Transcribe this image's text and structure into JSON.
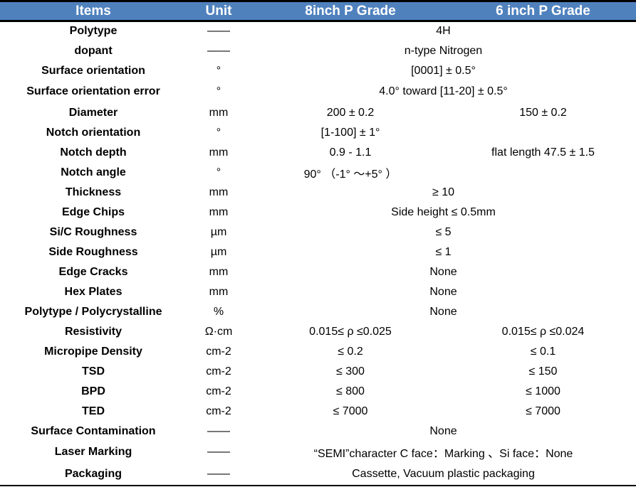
{
  "header": {
    "items": "Items",
    "unit": "Unit",
    "grade8": "8inch P Grade",
    "grade6": "6 inch P Grade"
  },
  "rows": [
    {
      "item": "Polytype",
      "unit": "——",
      "span": "4H"
    },
    {
      "item": "dopant",
      "unit": "——",
      "span": "n-type Nitrogen"
    },
    {
      "item": "Surface orientation",
      "unit": "°",
      "span": "[0001] ± 0.5°"
    },
    {
      "item": "Surface orientation error",
      "unit": "°",
      "span": "4.0° toward  [11-20]  ± 0.5°",
      "tall": true
    },
    {
      "item": "Diameter",
      "unit": "mm",
      "v8": "200 ± 0.2",
      "v6": "150 ± 0.2"
    },
    {
      "item": "Notch orientation",
      "unit": "°",
      "v8": "[1-100] ± 1°",
      "v6": ""
    },
    {
      "item": "Notch depth",
      "unit": "mm",
      "v8": "0.9 - 1.1",
      "v6": "flat length 47.5 ± 1.5"
    },
    {
      "item": "Notch angle",
      "unit": "°",
      "v8": "90°  （-1° ～+5° ）",
      "v6": ""
    },
    {
      "item": "Thickness",
      "unit": "mm",
      "span": "≥ 10"
    },
    {
      "item": "Edge Chips",
      "unit": "mm",
      "span": "Side height ≤ 0.5mm"
    },
    {
      "item": "Si/C Roughness",
      "unit": "µm",
      "span": "≤ 5"
    },
    {
      "item": "Side Roughness",
      "unit": "µm",
      "span": "≤ 1"
    },
    {
      "item": "Edge Cracks",
      "unit": "mm",
      "span": "None"
    },
    {
      "item": "Hex Plates",
      "unit": "mm",
      "span": "None"
    },
    {
      "item": "Polytype / Polycrystalline",
      "unit": "%",
      "span": "None"
    },
    {
      "item": "Resistivity",
      "unit": "Ω·cm",
      "v8": "0.015≤ ρ ≤0.025",
      "v6": "0.015≤ ρ ≤0.024"
    },
    {
      "item": "Micropipe Density",
      "unit": "cm-2",
      "v8": "≤ 0.2",
      "v6": "≤ 0.1"
    },
    {
      "item": "TSD",
      "unit": "cm-2",
      "v8": "≤ 300",
      "v6": "≤ 150"
    },
    {
      "item": "BPD",
      "unit": "cm-2",
      "v8": "≤ 800",
      "v6": "≤ 1000"
    },
    {
      "item": "TED",
      "unit": "cm-2",
      "v8": "≤ 7000",
      "v6": "≤ 7000"
    },
    {
      "item": "Surface Contamination",
      "unit": "——",
      "span": "None"
    },
    {
      "item": "Laser Marking",
      "unit": "——",
      "span": "“SEMI”character C face：Marking 、Si face：None",
      "tall": true
    },
    {
      "item": "Packaging",
      "unit": "——",
      "span": "Cassette, Vacuum plastic packaging",
      "tall": true
    }
  ],
  "colors": {
    "header_bg": "#4f81bd",
    "header_text": "#ffffff"
  }
}
